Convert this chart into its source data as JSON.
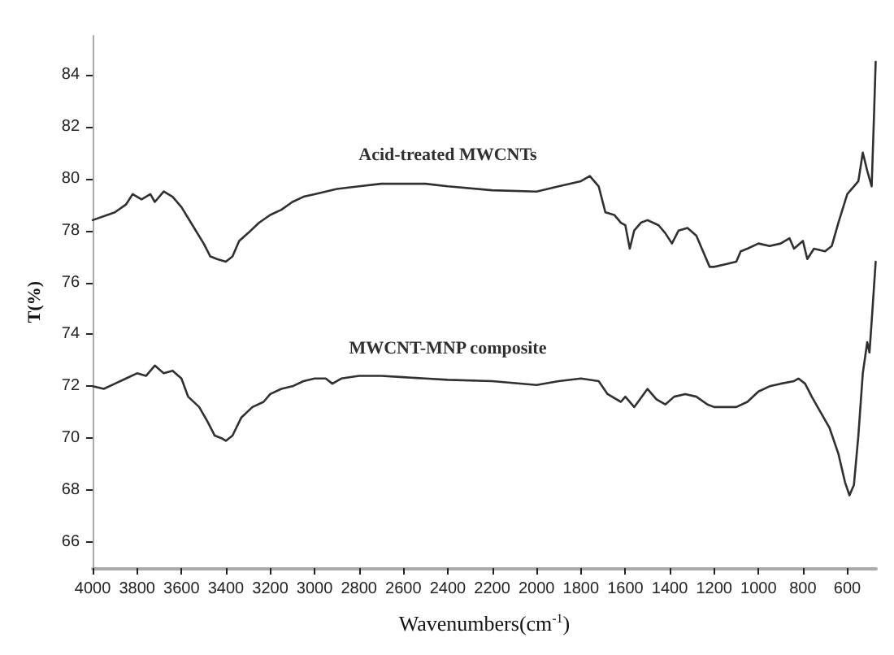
{
  "chart_data": {
    "type": "line",
    "xlabel": "Wavenumbers(cm$^{-1}$)",
    "ylabel": "T(%)",
    "xlim": [
      4000,
      470
    ],
    "ylim": [
      65,
      85.5
    ],
    "xticks": [
      4000,
      3800,
      3600,
      3400,
      3200,
      3000,
      2800,
      2600,
      2400,
      2200,
      2000,
      1800,
      1600,
      1400,
      1200,
      1000,
      800,
      600
    ],
    "yticks": [
      66,
      68,
      70,
      72,
      74,
      76,
      78,
      80,
      82,
      84
    ],
    "grid": false,
    "marker": "none",
    "line_style": "solid",
    "series": [
      {
        "name": "Acid-treated MWCNTs",
        "color": "#303030",
        "x": [
          4000,
          3900,
          3850,
          3820,
          3780,
          3740,
          3720,
          3680,
          3640,
          3600,
          3550,
          3500,
          3470,
          3440,
          3400,
          3370,
          3340,
          3300,
          3250,
          3200,
          3150,
          3100,
          3050,
          3000,
          2950,
          2900,
          2800,
          2700,
          2600,
          2500,
          2400,
          2200,
          2000,
          1900,
          1800,
          1760,
          1720,
          1690,
          1650,
          1620,
          1600,
          1580,
          1560,
          1530,
          1500,
          1450,
          1420,
          1390,
          1360,
          1320,
          1280,
          1250,
          1220,
          1200,
          1150,
          1100,
          1080,
          1050,
          1000,
          950,
          900,
          860,
          840,
          800,
          780,
          750,
          700,
          670,
          640,
          600,
          570,
          550,
          530,
          510,
          490,
          480,
          472
        ],
        "values": [
          78.4,
          78.7,
          79.0,
          79.4,
          79.2,
          79.4,
          79.1,
          79.5,
          79.3,
          78.9,
          78.2,
          77.5,
          77.0,
          76.9,
          76.8,
          77.0,
          77.6,
          77.9,
          78.3,
          78.6,
          78.8,
          79.1,
          79.3,
          79.4,
          79.5,
          79.6,
          79.7,
          79.8,
          79.8,
          79.8,
          79.7,
          79.55,
          79.5,
          79.7,
          79.9,
          80.1,
          79.7,
          78.7,
          78.6,
          78.3,
          78.2,
          77.3,
          78.0,
          78.3,
          78.4,
          78.2,
          77.9,
          77.5,
          78.0,
          78.1,
          77.8,
          77.2,
          76.6,
          76.6,
          76.7,
          76.8,
          77.2,
          77.3,
          77.5,
          77.4,
          77.5,
          77.7,
          77.3,
          77.6,
          76.9,
          77.3,
          77.2,
          77.4,
          78.3,
          79.4,
          79.7,
          79.9,
          81.0,
          80.3,
          79.7,
          82.3,
          84.5
        ]
      },
      {
        "name": "MWCNT-MNP composite",
        "color": "#303030",
        "x": [
          4000,
          3950,
          3900,
          3850,
          3800,
          3760,
          3720,
          3680,
          3640,
          3600,
          3570,
          3520,
          3480,
          3450,
          3420,
          3400,
          3370,
          3330,
          3280,
          3230,
          3200,
          3150,
          3100,
          3050,
          3000,
          2950,
          2920,
          2880,
          2800,
          2700,
          2600,
          2500,
          2400,
          2200,
          2000,
          1900,
          1800,
          1720,
          1680,
          1620,
          1600,
          1560,
          1500,
          1460,
          1420,
          1380,
          1330,
          1280,
          1230,
          1200,
          1100,
          1050,
          1000,
          950,
          900,
          840,
          820,
          790,
          760,
          720,
          680,
          640,
          610,
          590,
          570,
          550,
          530,
          510,
          500,
          490,
          472
        ],
        "values": [
          72.0,
          71.9,
          72.1,
          72.3,
          72.5,
          72.4,
          72.8,
          72.5,
          72.6,
          72.3,
          71.6,
          71.2,
          70.6,
          70.1,
          70.0,
          69.9,
          70.1,
          70.8,
          71.2,
          71.4,
          71.7,
          71.9,
          72.0,
          72.2,
          72.3,
          72.3,
          72.1,
          72.3,
          72.4,
          72.4,
          72.35,
          72.3,
          72.25,
          72.2,
          72.05,
          72.2,
          72.3,
          72.2,
          71.7,
          71.4,
          71.6,
          71.2,
          71.9,
          71.5,
          71.3,
          71.6,
          71.7,
          71.6,
          71.3,
          71.2,
          71.2,
          71.4,
          71.8,
          72.0,
          72.1,
          72.2,
          72.3,
          72.1,
          71.6,
          71.0,
          70.4,
          69.4,
          68.3,
          67.8,
          68.2,
          70.1,
          72.5,
          73.7,
          73.3,
          74.5,
          76.8
        ]
      }
    ]
  }
}
